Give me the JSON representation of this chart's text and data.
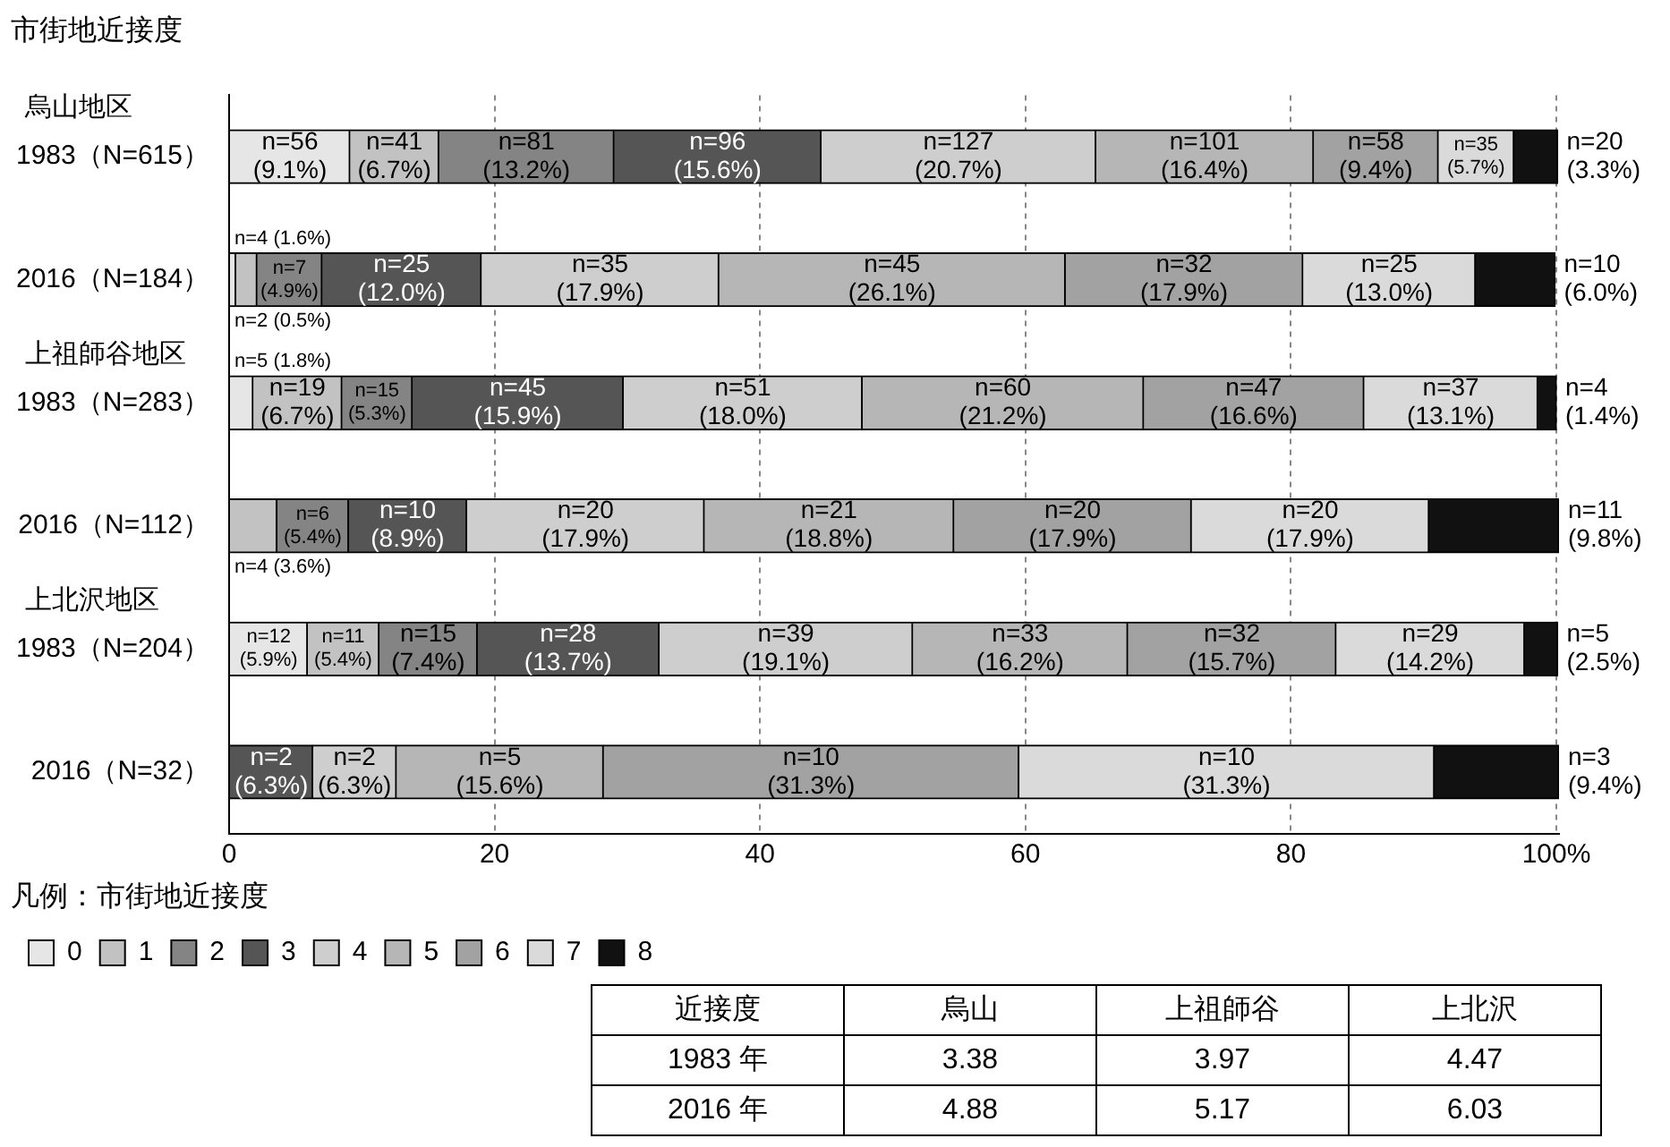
{
  "chart_data": [
    {
      "type": "bar",
      "orientation": "horizontal",
      "stacked": true,
      "title": "市街地近接度",
      "legend_title": "凡例：市街地近接度",
      "legend": "bottom left",
      "grid": "x",
      "annotations": [
        "烏山地区",
        "上祖師谷地区",
        "上北沢地区"
      ],
      "categories": [
        "1983（N=615）",
        "2016（N=184）",
        "1983（N=283）",
        "2016（N=112）",
        "1983（N=204）",
        "2016（N=32）"
      ],
      "xlim": [
        0,
        100.2
      ],
      "xticks": [
        0,
        20,
        40,
        60,
        80,
        {
          "value": 100,
          "label": "100%"
        }
      ],
      "series": [
        {
          "name": "0",
          "color": "#e6e6e6",
          "values": [
            9.1,
            0.5,
            1.8,
            0,
            5.9,
            0
          ],
          "value_labels": [
            "n=56 (9.1%)",
            "n=2 (0.5%)",
            "n=5 (1.8%)",
            null,
            "n=12 (5.9%)",
            null
          ]
        },
        {
          "name": "1",
          "color": "#c2c2c2",
          "values": [
            6.7,
            1.6,
            6.7,
            3.6,
            5.4,
            0
          ],
          "value_labels": [
            "n=41 (6.7%)",
            "n=4 (1.6%)",
            "n=19 (6.7%)",
            "n=4 (3.6%)",
            "n=11 (5.4%)",
            null
          ]
        },
        {
          "name": "2",
          "color": "#848484",
          "values": [
            13.2,
            4.9,
            5.3,
            5.4,
            7.4,
            0
          ],
          "value_labels": [
            "n=81 (13.2%)",
            "n=7 (4.9%)",
            "n=15 (5.3%)",
            "n=6 (5.4%)",
            "n=15 (7.4%)",
            null
          ]
        },
        {
          "name": "3",
          "color": "#555555",
          "values": [
            15.6,
            12.0,
            15.9,
            8.9,
            13.7,
            6.3
          ],
          "value_labels": [
            "n=96 (15.6%)",
            "n=25 (12.0%)",
            "n=45 (15.9%)",
            "n=10 (8.9%)",
            "n=28 (13.7%)",
            "n=2 (6.3%)"
          ]
        },
        {
          "name": "4",
          "color": "#cecece",
          "values": [
            20.7,
            17.9,
            18.0,
            17.9,
            19.1,
            6.3
          ],
          "value_labels": [
            "n=127 (20.7%)",
            "n=35 (17.9%)",
            "n=51 (18.0%)",
            "n=20 (17.9%)",
            "n=39 (19.1%)",
            "n=2 (6.3%)"
          ]
        },
        {
          "name": "5",
          "color": "#b6b6b6",
          "values": [
            16.4,
            26.1,
            21.2,
            18.8,
            16.2,
            15.6
          ],
          "value_labels": [
            "n=101 (16.4%)",
            "n=45 (26.1%)",
            "n=60 (21.2%)",
            "n=21 (18.8%)",
            "n=33 (16.2%)",
            "n=5 (15.6%)"
          ]
        },
        {
          "name": "6",
          "color": "#a2a2a2",
          "values": [
            9.4,
            17.9,
            16.6,
            17.9,
            15.7,
            31.3
          ],
          "value_labels": [
            "n=58 (9.4%)",
            "n=32 (17.9%)",
            "n=47 (16.6%)",
            "n=20 (17.9%)",
            "n=32 (15.7%)",
            "n=10 (31.3%)"
          ]
        },
        {
          "name": "7",
          "color": "#dadada",
          "values": [
            5.7,
            13.0,
            13.1,
            17.9,
            14.2,
            31.3
          ],
          "value_labels": [
            "n=35 (5.7%)",
            "n=25 (13.0%)",
            "n=37 (13.1%)",
            "n=20 (17.9%)",
            "n=29 (14.2%)",
            "n=10 (31.3%)"
          ]
        },
        {
          "name": "8",
          "color": "#111111",
          "values": [
            3.3,
            6.0,
            1.4,
            9.8,
            2.5,
            9.4
          ],
          "value_labels": [
            "n=20 (3.3%)",
            "n=10 (6.0%)",
            "n=4 (1.4%)",
            "n=11 (9.8%)",
            "n=5 (2.5%)",
            "n=3 (9.4%)"
          ]
        }
      ]
    },
    {
      "type": "heatmap",
      "ylabel": "近接度",
      "categories": [
        "烏山",
        "上祖師谷",
        "上北沢"
      ],
      "y_categories": [
        "1983 年",
        "2016 年"
      ],
      "cells": [
        [
          3.38,
          3.97,
          4.47
        ],
        [
          4.88,
          5.17,
          6.03
        ]
      ],
      "data_labels": true
    }
  ]
}
